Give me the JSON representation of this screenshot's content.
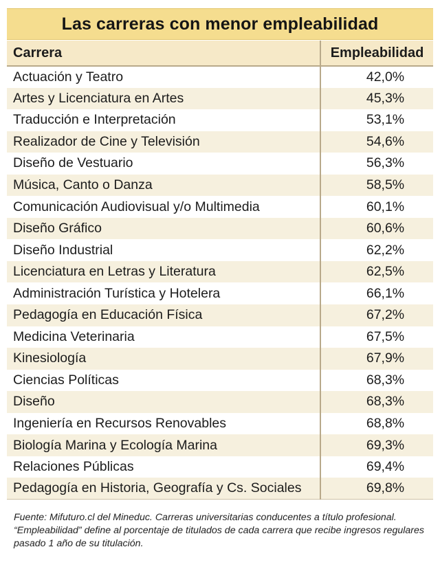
{
  "title": "Las carreras con menor empleabilidad",
  "columns": {
    "career": "Carrera",
    "value": "Empleabilidad"
  },
  "footnote": "Fuente: Mifuturo.cl del Mineduc. Carreras universitarias conducentes a título profesional. “Empleabilidad” define al porcentaje de titulados de cada carrera que recibe ingresos regulares pasado 1 año de su titulación.",
  "chart_data": {
    "type": "table",
    "title": "Las carreras con menor empleabilidad",
    "columns": [
      "Carrera",
      "Empleabilidad"
    ],
    "rows": [
      {
        "career": "Actuación y Teatro",
        "value": "42,0%"
      },
      {
        "career": "Artes y Licenciatura en Artes",
        "value": "45,3%"
      },
      {
        "career": "Traducción e Interpretación",
        "value": "53,1%"
      },
      {
        "career": "Realizador de Cine y Televisión",
        "value": "54,6%"
      },
      {
        "career": "Diseño de Vestuario",
        "value": "56,3%"
      },
      {
        "career": "Música, Canto o Danza",
        "value": "58,5%"
      },
      {
        "career": "Comunicación Audiovisual y/o Multimedia",
        "value": "60,1%"
      },
      {
        "career": "Diseño Gráfico",
        "value": "60,6%"
      },
      {
        "career": "Diseño Industrial",
        "value": "62,2%"
      },
      {
        "career": "Licenciatura en Letras y Literatura",
        "value": "62,5%"
      },
      {
        "career": "Administración Turística y Hotelera",
        "value": "66,1%"
      },
      {
        "career": "Pedagogía en Educación Física",
        "value": "67,2%"
      },
      {
        "career": "Medicina Veterinaria",
        "value": "67,5%"
      },
      {
        "career": "Kinesiología",
        "value": "67,9%"
      },
      {
        "career": "Ciencias Políticas",
        "value": "68,3%"
      },
      {
        "career": "Diseño",
        "value": "68,3%"
      },
      {
        "career": "Ingeniería en Recursos Renovables",
        "value": "68,8%"
      },
      {
        "career": "Biología Marina y Ecología Marina",
        "value": "69,3%"
      },
      {
        "career": "Relaciones Públicas",
        "value": "69,4%"
      },
      {
        "career": "Pedagogía en Historia, Geografía y Cs. Sociales",
        "value": "69,8%"
      }
    ]
  }
}
